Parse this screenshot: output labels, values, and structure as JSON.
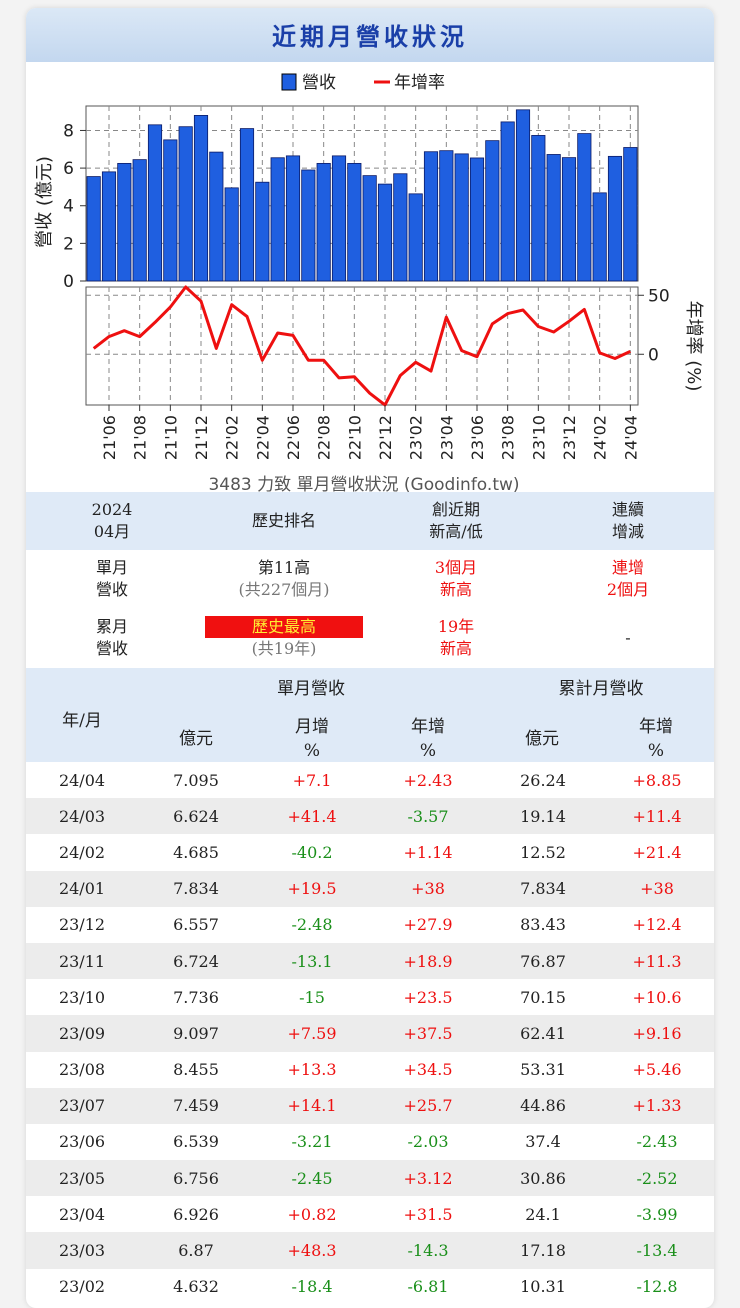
{
  "title": "近期月營收狀況",
  "chart_data": {
    "type": "bar+line",
    "legend": [
      "營收",
      "年增率"
    ],
    "ylabel_left": "營收 (億元)",
    "ylabel_right": "年增率 (%)",
    "left_ticks": [
      "0",
      "2",
      "4",
      "6",
      "8"
    ],
    "right_ticks": [
      "50",
      "0"
    ],
    "ylim_left": [
      0,
      9.3
    ],
    "ylim_right": [
      -43,
      57
    ],
    "categories": [
      "21/05",
      "21/06",
      "21/07",
      "21/08",
      "21/09",
      "21/10",
      "21/11",
      "21/12",
      "22/01",
      "22/02",
      "22/03",
      "22/04",
      "22/05",
      "22/06",
      "22/07",
      "22/08",
      "22/09",
      "22/10",
      "22/11",
      "22/12",
      "23/01",
      "23/02",
      "23/03",
      "23/04",
      "23/05",
      "23/06",
      "23/07",
      "23/08",
      "23/09",
      "23/10",
      "23/11",
      "23/12",
      "24/01",
      "24/02",
      "24/03",
      "24/04"
    ],
    "xtick_labels": [
      "21'06",
      "21'08",
      "21'10",
      "21'12",
      "22'02",
      "22'04",
      "22'06",
      "22'08",
      "22'10",
      "22'12",
      "23'02",
      "23'04",
      "23'06",
      "23'08",
      "23'10",
      "23'12",
      "24'02",
      "24'04"
    ],
    "revenue": [
      5.55,
      5.8,
      6.25,
      6.45,
      8.3,
      7.5,
      8.2,
      8.8,
      6.85,
      4.95,
      8.1,
      5.25,
      6.55,
      6.65,
      5.9,
      6.25,
      6.65,
      6.25,
      5.6,
      5.15,
      5.7,
      4.632,
      6.87,
      6.926,
      6.756,
      6.539,
      7.459,
      8.455,
      9.097,
      7.736,
      6.724,
      6.557,
      7.834,
      4.685,
      6.624,
      7.095
    ],
    "yoy": [
      5,
      15,
      20,
      15,
      27,
      40,
      57,
      45,
      5,
      42,
      32,
      -5,
      18,
      16,
      -5,
      -5,
      -20,
      -19,
      -33,
      -43,
      -18,
      -6.81,
      -14.3,
      31.5,
      3.12,
      -2.03,
      25.7,
      34.5,
      37.5,
      23.5,
      18.9,
      27.9,
      38,
      1.14,
      -3.57,
      2.43
    ],
    "caption": "3483 力致 單月營收狀況 (Goodinfo.tw)"
  },
  "summary": {
    "head": {
      "c1a": "2024",
      "c1b": "04月",
      "c2": "歷史排名",
      "c3a": "創近期",
      "c3b": "新高/低",
      "c4a": "連續",
      "c4b": "增減"
    },
    "monthly": {
      "label_a": "單月",
      "label_b": "營收",
      "rank": "第11高",
      "rank_sub": "(共227個月)",
      "recent_a": "3個月",
      "recent_b": "新高",
      "streak_a": "連增",
      "streak_b": "2個月"
    },
    "cumulative": {
      "label_a": "累月",
      "label_b": "營收",
      "rank": "歷史最高",
      "rank_sub": "(共19年)",
      "recent_a": "19年",
      "recent_b": "新高",
      "streak": "-"
    }
  },
  "table": {
    "col_month": "年/月",
    "group_single": "單月營收",
    "group_cum": "累計月營收",
    "col_amount": "億元",
    "col_mom_a": "月增",
    "col_pct": "%",
    "col_yoy_a": "年增",
    "rows": [
      {
        "ym": "24/04",
        "rev": "7.095",
        "mom": "+7.1",
        "yoy": "+2.43",
        "cum": "26.24",
        "cyoy": "+8.85"
      },
      {
        "ym": "24/03",
        "rev": "6.624",
        "mom": "+41.4",
        "yoy": "-3.57",
        "cum": "19.14",
        "cyoy": "+11.4"
      },
      {
        "ym": "24/02",
        "rev": "4.685",
        "mom": "-40.2",
        "yoy": "+1.14",
        "cum": "12.52",
        "cyoy": "+21.4"
      },
      {
        "ym": "24/01",
        "rev": "7.834",
        "mom": "+19.5",
        "yoy": "+38",
        "cum": "7.834",
        "cyoy": "+38"
      },
      {
        "ym": "23/12",
        "rev": "6.557",
        "mom": "-2.48",
        "yoy": "+27.9",
        "cum": "83.43",
        "cyoy": "+12.4"
      },
      {
        "ym": "23/11",
        "rev": "6.724",
        "mom": "-13.1",
        "yoy": "+18.9",
        "cum": "76.87",
        "cyoy": "+11.3"
      },
      {
        "ym": "23/10",
        "rev": "7.736",
        "mom": "-15",
        "yoy": "+23.5",
        "cum": "70.15",
        "cyoy": "+10.6"
      },
      {
        "ym": "23/09",
        "rev": "9.097",
        "mom": "+7.59",
        "yoy": "+37.5",
        "cum": "62.41",
        "cyoy": "+9.16"
      },
      {
        "ym": "23/08",
        "rev": "8.455",
        "mom": "+13.3",
        "yoy": "+34.5",
        "cum": "53.31",
        "cyoy": "+5.46"
      },
      {
        "ym": "23/07",
        "rev": "7.459",
        "mom": "+14.1",
        "yoy": "+25.7",
        "cum": "44.86",
        "cyoy": "+1.33"
      },
      {
        "ym": "23/06",
        "rev": "6.539",
        "mom": "-3.21",
        "yoy": "-2.03",
        "cum": "37.4",
        "cyoy": "-2.43"
      },
      {
        "ym": "23/05",
        "rev": "6.756",
        "mom": "-2.45",
        "yoy": "+3.12",
        "cum": "30.86",
        "cyoy": "-2.52"
      },
      {
        "ym": "23/04",
        "rev": "6.926",
        "mom": "+0.82",
        "yoy": "+31.5",
        "cum": "24.1",
        "cyoy": "-3.99"
      },
      {
        "ym": "23/03",
        "rev": "6.87",
        "mom": "+48.3",
        "yoy": "-14.3",
        "cum": "17.18",
        "cyoy": "-13.4"
      },
      {
        "ym": "23/02",
        "rev": "4.632",
        "mom": "-18.4",
        "yoy": "-6.81",
        "cum": "10.31",
        "cyoy": "-12.8"
      }
    ]
  },
  "colors": {
    "bar": "#1f5fe0",
    "line": "#ee1010",
    "up": "#ee1010",
    "down": "#1a8f1a"
  }
}
